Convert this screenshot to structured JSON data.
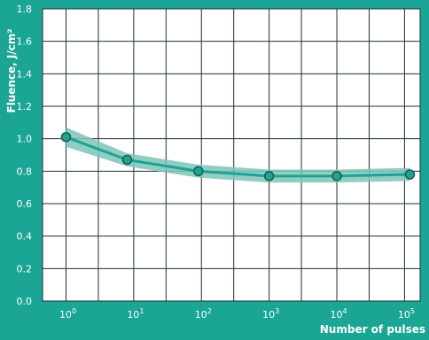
{
  "colors": {
    "background": "#1aa594",
    "plot_background": "#ffffff",
    "grid": "#1f2f3a",
    "line": "#1aa594",
    "band": "#7fc4ba",
    "marker_fill": "#1aa594",
    "marker_stroke": "#1f5750",
    "text": "#ffffff"
  },
  "chart_data": {
    "type": "line",
    "title": "",
    "xlabel": "Number of pulses",
    "ylabel": "Fluence, J/cm²",
    "x_scale": "log",
    "x": [
      1,
      8,
      90,
      1000,
      10000,
      120000
    ],
    "x_ticks": [
      {
        "value": 1,
        "base": "10",
        "exp": "0"
      },
      {
        "value": 10,
        "base": "10",
        "exp": "1"
      },
      {
        "value": 100,
        "base": "10",
        "exp": "2"
      },
      {
        "value": 1000,
        "base": "10",
        "exp": "3"
      },
      {
        "value": 10000,
        "base": "10",
        "exp": "4"
      },
      {
        "value": 100000,
        "base": "10",
        "exp": "5"
      }
    ],
    "y_ticks": [
      "0.0",
      "0.2",
      "0.4",
      "0.6",
      "0.8",
      "1.0",
      "1.2",
      "1.4",
      "1.6",
      "1.8"
    ],
    "ylim": [
      0,
      1.8
    ],
    "grid": true,
    "series": [
      {
        "values": [
          1.01,
          0.87,
          0.8,
          0.77,
          0.77,
          0.78
        ],
        "band_upper": [
          1.07,
          0.91,
          0.84,
          0.81,
          0.81,
          0.82
        ],
        "band_lower": [
          0.95,
          0.83,
          0.76,
          0.73,
          0.73,
          0.74
        ]
      }
    ]
  }
}
